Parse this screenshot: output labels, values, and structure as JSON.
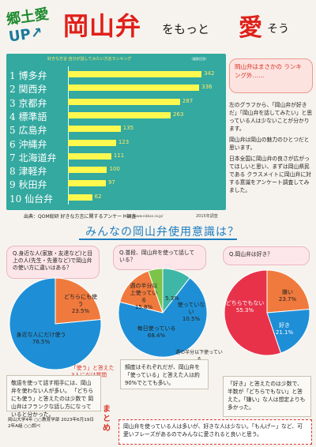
{
  "header": {
    "left_line1": "郷土愛",
    "left_line2": "UP↗",
    "title": "岡山弁",
    "sub1": "をもっと",
    "ai": "愛",
    "sub2": "そう"
  },
  "chart_data": {
    "type": "bar",
    "orientation": "horizontal",
    "title": "好きな方言 自分が話してみたい方言ランキング",
    "unit": "（複数回答）",
    "categories": [
      "1 博多弁",
      "2 関西弁",
      "3 京都弁",
      "4 標準語",
      "5 広島弁",
      "6 沖縄弁",
      "7 北海道弁",
      "8 津軽弁",
      "9 秋田弁",
      "10 仙台弁"
    ],
    "values": [
      342,
      336,
      287,
      263,
      135,
      123,
      111,
      100,
      97,
      62
    ],
    "value_labels": [
      "342",
      "336",
      "287",
      "263",
      "135",
      "123",
      "111",
      "100",
      "97",
      "62"
    ],
    "xlim": [
      0,
      360
    ],
    "colors": {
      "background": "#33a9a0",
      "bar": "#fff84f",
      "label": "#ffffff"
    }
  },
  "source": {
    "text": "出典：QOM総研 好きな方言に関するアンケート調査",
    "url": "http://www.nikkan.co.jp/",
    "year": "2015年調査"
  },
  "note_right": {
    "question": "岡山弁はまさかの ランキング外……",
    "p1": "左のグラフから、「岡山弁が好きだ」「岡山弁を話してみたい」と思っている人は少ないことが分かります。",
    "p2": "岡山弁は岡山の魅力のひとつだと思います。",
    "p3": "日本全国に岡山弁の良さが広がってほしいと思い、まずは岡山県民である クラスメイトに岡山弁に対する意識をアンケート調査してみました。"
  },
  "banner": "みんなの岡山弁使用意識は？",
  "questions": {
    "q1": "Q.身近な人(家族・友達など)と目上の人(先生・先輩など)で岡山弁の使い方に違いはある？",
    "q2": "Q.普段、岡山弁を使って話している？",
    "q3": "Q.岡山弁は好き？"
  },
  "pie1": {
    "slices": [
      {
        "label": "どちらにも使う",
        "value": 23.5,
        "display": "23.5%",
        "color": "#f07a3e"
      },
      {
        "label": "身近な人にだけ使う",
        "value": 76.5,
        "display": "76.5%",
        "color": "#1e8fd6"
      }
    ]
  },
  "pie2": {
    "slices": [
      {
        "label": "毎日使っている",
        "value": 68.4,
        "display": "68.4%",
        "color": "#1e8fd6"
      },
      {
        "label": "週の半分以上使っている",
        "value": 15.8,
        "display": "15.8%",
        "color": "#f07a3e"
      },
      {
        "label": "週の半分以下使っている",
        "value": 5.3,
        "display": "5.3%",
        "color": "#7dc34a"
      },
      {
        "label": "使っていない",
        "value": 10.5,
        "display": "10.5%",
        "color": "#3fb7a6"
      }
    ],
    "callout": "週の半分以下使っている"
  },
  "pie3": {
    "slices": [
      {
        "label": "どちらでもない",
        "value": 55.3,
        "display": "55.3%",
        "color": "#e8324a"
      },
      {
        "label": "嫌い",
        "value": 23.7,
        "display": "23.7%",
        "color": "#f07a3e"
      },
      {
        "label": "好き",
        "value": 21.1,
        "display": "21.1%",
        "color": "#1e8fd6"
      }
    ]
  },
  "arrow_note": "「使う」と答えた 3人にだけ質問",
  "bottom": {
    "b1": "敬語を使って話す相手には、岡山弁を使わない人が多い。 「どちらにも使う」と答えたのは少数で 岡山弁はフランクな話し方になっていると分かった。",
    "b2": "頻度はそれぞれだが、岡山弁を「使っている」と答えた人は約90%でとても多い。",
    "b3": "「好き」と答えたのは少数で、半数が「どちらでもない」と答えた。「嫌い」な人は想定よりも多かった。",
    "credit1": "岡山大学4年 ○○教育学部 2023年6月19日",
    "credit2": "2年A組 ○○調べ",
    "matome": "まとめ",
    "summary": "岡山弁を使っている人は多いが、好きな人は少ない。「もんげー」など、可愛いフレーズがあるのでみんなに愛されると良いと思う。"
  }
}
